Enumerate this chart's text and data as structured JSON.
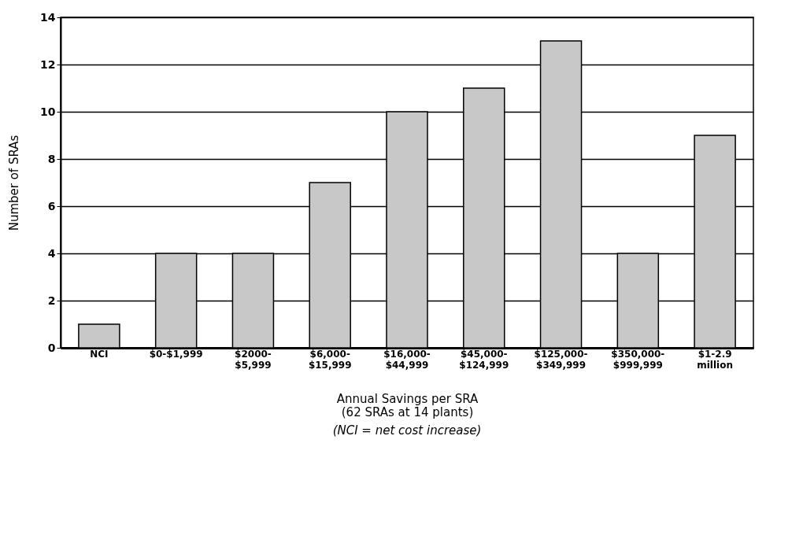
{
  "chart_data": {
    "type": "bar",
    "categories": [
      "NCI",
      "$0-$1,999",
      "$2000-\n$5,999",
      "$6,000-\n$15,999",
      "$16,000-\n$44,999",
      "$45,000-\n$124,999",
      "$125,000-\n$349,999",
      "$350,000-\n$999,999",
      "$1-2.9\nmillion"
    ],
    "values": [
      1,
      4,
      4,
      7,
      10,
      11,
      13,
      4,
      9
    ],
    "color": "#c8c8c8",
    "xlabel": "Annual Savings per SRA\n(62 SRAs at 14 plants)",
    "ylabel": "Number of SRAs",
    "annotations": [
      "(NCI = net cost increase)"
    ],
    "ylim": [
      0,
      14
    ],
    "yticks": [
      0,
      2,
      4,
      6,
      8,
      10,
      12,
      14
    ],
    "grid": "y"
  }
}
